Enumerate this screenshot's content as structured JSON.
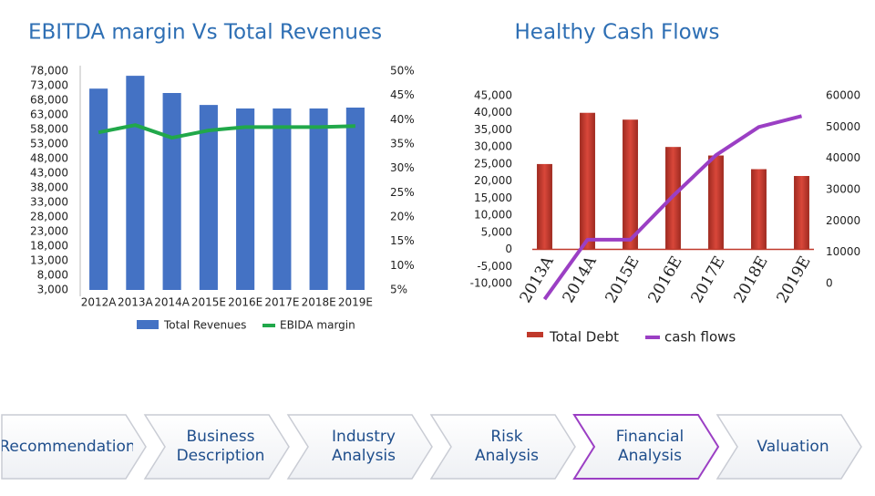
{
  "chart_data": [
    {
      "type": "combo",
      "title": "EBITDA margin Vs Total Revenues",
      "categories": [
        "2012A",
        "2013A",
        "2014A",
        "2015E",
        "2016E",
        "2017E",
        "2018E",
        "2019E"
      ],
      "series": [
        {
          "name": "Total Revenues",
          "type": "bar",
          "color": "#4472c4",
          "values": [
            72000,
            76400,
            70500,
            66400,
            65200,
            65200,
            65200,
            65500
          ]
        },
        {
          "name": "EBIDA margin",
          "type": "line",
          "axis": "y2",
          "color": "#21a84a",
          "values": [
            37.4,
            38.9,
            36.3,
            37.8,
            38.5,
            38.5,
            38.5,
            38.7
          ]
        }
      ],
      "ylim": [
        3000,
        78000
      ],
      "yticks": [
        {
          "value": 78000,
          "label": "78,000"
        },
        {
          "value": 73000,
          "label": "73,000"
        },
        {
          "value": 68000,
          "label": "68,000"
        },
        {
          "value": 63000,
          "label": "63,000"
        },
        {
          "value": 58000,
          "label": "58,000"
        },
        {
          "value": 53000,
          "label": "53,000"
        },
        {
          "value": 48000,
          "label": "48,000"
        },
        {
          "value": 43000,
          "label": "43,000"
        },
        {
          "value": 38000,
          "label": "38,000"
        },
        {
          "value": 33000,
          "label": "33,000"
        },
        {
          "value": 28000,
          "label": "28,000"
        },
        {
          "value": 23000,
          "label": "23,000"
        },
        {
          "value": 18000,
          "label": "18,000"
        },
        {
          "value": 13000,
          "label": "13,000"
        },
        {
          "value": 8000,
          "label": "8,000"
        },
        {
          "value": 3000,
          "label": "3,000"
        }
      ],
      "y2lim": [
        5,
        50
      ],
      "y2ticks": [
        {
          "value": 50,
          "label": "50%"
        },
        {
          "value": 45,
          "label": "45%"
        },
        {
          "value": 40,
          "label": "40%"
        },
        {
          "value": 35,
          "label": "35%"
        },
        {
          "value": 30,
          "label": "30%"
        },
        {
          "value": 25,
          "label": "25%"
        },
        {
          "value": 20,
          "label": "20%"
        },
        {
          "value": 15,
          "label": "15%"
        },
        {
          "value": 10,
          "label": "10%"
        },
        {
          "value": 5,
          "label": "5%"
        }
      ],
      "rotate_labels": false
    },
    {
      "type": "combo",
      "title": "Healthy Cash Flows",
      "categories": [
        "2013A",
        "2014A",
        "2015E",
        "2016E",
        "2017E",
        "2018E",
        "2019E"
      ],
      "series": [
        {
          "name": "Total Debt",
          "type": "bar",
          "color": "#c0392b",
          "values": [
            25000,
            40000,
            38000,
            30000,
            27500,
            23500,
            21500
          ]
        },
        {
          "name": "cash flows",
          "type": "line",
          "axis": "y2",
          "color": "#9b3fc4",
          "values": [
            -5000,
            14000,
            14000,
            28000,
            41000,
            50000,
            53500
          ]
        }
      ],
      "ylim": [
        -10000,
        45000
      ],
      "yticks": [
        {
          "value": 45000,
          "label": "45,000"
        },
        {
          "value": 40000,
          "label": "40,000"
        },
        {
          "value": 35000,
          "label": "35,000"
        },
        {
          "value": 30000,
          "label": "30,000"
        },
        {
          "value": 25000,
          "label": "25,000"
        },
        {
          "value": 20000,
          "label": "20,000"
        },
        {
          "value": 15000,
          "label": "15,000"
        },
        {
          "value": 10000,
          "label": "10,000"
        },
        {
          "value": 5000,
          "label": "5,000"
        },
        0,
        {
          "value": -5000,
          "label": "-5,000"
        },
        {
          "value": -10000,
          "label": "-10,000"
        }
      ],
      "y2lim": [
        0,
        60000
      ],
      "y2ticks": [
        60000,
        50000,
        40000,
        30000,
        20000,
        10000,
        0
      ],
      "rotate_labels": true
    }
  ],
  "nav": {
    "items": [
      "Recommendation",
      "Business Description",
      "Industry Analysis",
      "Risk Analysis",
      "Financial Analysis",
      "Valuation"
    ],
    "active": 4
  }
}
